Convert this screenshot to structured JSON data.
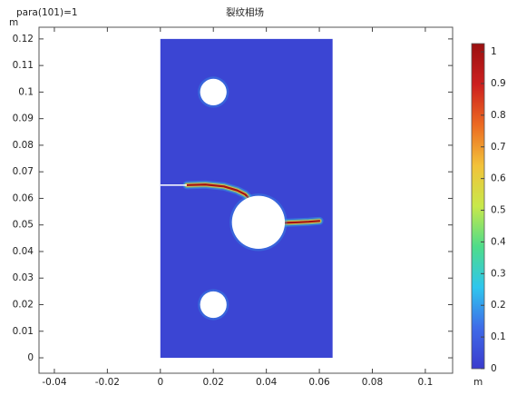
{
  "chart_data": {
    "type": "field",
    "title": "裂纹相场",
    "parameter": "para(101)=1",
    "x_unit": "m",
    "y_unit": "m",
    "xlim": [
      -0.0458,
      0.1103
    ],
    "ylim": [
      -0.0058,
      0.1244
    ],
    "xticks": [
      -0.04,
      -0.02,
      0,
      0.02,
      0.04,
      0.06,
      0.08,
      0.1
    ],
    "yticks": [
      0,
      0.01,
      0.02,
      0.03,
      0.04,
      0.05,
      0.06,
      0.07,
      0.08,
      0.09,
      0.1,
      0.11,
      0.12
    ],
    "domain": {
      "x": [
        0,
        0.065
      ],
      "y": [
        0,
        0.12
      ],
      "value": 0.03
    },
    "holes": {
      "x": [
        0.02,
        0.037,
        0.02
      ],
      "y": [
        0.1,
        0.051,
        0.02
      ],
      "r": [
        0.005,
        0.01,
        0.005
      ]
    },
    "notch": {
      "x": [
        0,
        0.01
      ],
      "y": [
        0.065,
        0.065
      ]
    },
    "cracks": [
      {
        "x": [
          0.01,
          0.017,
          0.024,
          0.029,
          0.032,
          0.033
        ],
        "y": [
          0.065,
          0.0652,
          0.0645,
          0.063,
          0.0615,
          0.0605
        ],
        "value": 1
      },
      {
        "x": [
          0.047,
          0.052,
          0.056,
          0.06
        ],
        "y": [
          0.0508,
          0.051,
          0.0512,
          0.0515
        ],
        "value": 1
      }
    ],
    "colorbar": {
      "clim": [
        0,
        1.026
      ],
      "ticks": [
        0,
        0.1,
        0.2,
        0.3,
        0.4,
        0.5,
        0.6,
        0.7,
        0.8,
        0.9,
        1
      ],
      "colors": [
        "#3a3acd",
        "#3f6be8",
        "#2ec6ee",
        "#4edc8a",
        "#c8e84a",
        "#f2c23a",
        "#ec6a22",
        "#cc1f1f",
        "#9a1010"
      ]
    }
  }
}
